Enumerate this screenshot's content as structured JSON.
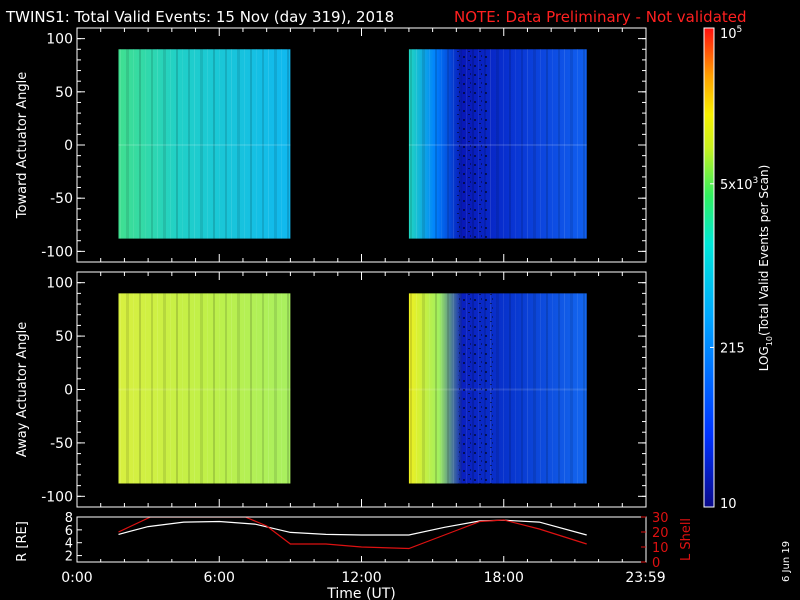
{
  "header": {
    "title": "TWINS1: Total Valid Events: 15 Nov (day 319), 2018",
    "note": "NOTE: Data Preliminary - Not validated"
  },
  "side_date": "6 Jun 19",
  "colors": {
    "background": "#000000",
    "axis": "#ffffff",
    "note": "#ff2020",
    "l_shell": "#dd1111",
    "r_earth": "#ffffff"
  },
  "chart_data": [
    {
      "type": "heatmap",
      "name": "toward",
      "ylabel": "Toward Actuator Angle",
      "ylim": [
        -110,
        110
      ],
      "yticks": [
        100,
        50,
        0,
        -50,
        -100
      ],
      "ytick_labels": [
        "100",
        "50",
        "0",
        "-50",
        "-100"
      ],
      "xlim_hours": [
        0,
        24
      ],
      "data_blocks": [
        {
          "start_h": 1.75,
          "end_h": 9.0,
          "angle_range": [
            -88,
            90
          ],
          "level": "medium",
          "description": "green-cyan fading to cyan"
        },
        {
          "start_h": 14.0,
          "end_h": 21.5,
          "angle_range": [
            -88,
            90
          ],
          "level": "low",
          "description": "cyan fading to deep blue"
        }
      ]
    },
    {
      "type": "heatmap",
      "name": "away",
      "ylabel": "Away Actuator Angle",
      "ylim": [
        -110,
        110
      ],
      "yticks": [
        100,
        50,
        0,
        -50,
        -100
      ],
      "ytick_labels": [
        "100",
        "50",
        "0",
        "-50",
        "-100"
      ],
      "xlim_hours": [
        0,
        24
      ],
      "data_blocks": [
        {
          "start_h": 1.75,
          "end_h": 9.0,
          "angle_range": [
            -88,
            90
          ],
          "level": "high",
          "description": "yellow to yellow-green"
        },
        {
          "start_h": 14.0,
          "end_h": 21.5,
          "angle_range": [
            -88,
            90
          ],
          "level": "mixed",
          "description": "yellow at start, blue after ~16:00"
        }
      ]
    },
    {
      "type": "line",
      "name": "orbit",
      "xlabel": "Time (UT)",
      "xticks": [
        "0:00",
        "6:00",
        "12:00",
        "18:00",
        "23:59"
      ],
      "xtick_hours": [
        0,
        6,
        12,
        18,
        23.98
      ],
      "ylabel_left": "R [RE]",
      "ylabel_right": "L Shell",
      "ylim_left": [
        1,
        8
      ],
      "yticks_left": [
        2,
        4,
        6,
        8
      ],
      "ylim_right": [
        0,
        30
      ],
      "yticks_right": [
        0,
        10,
        20,
        30
      ],
      "series": [
        {
          "name": "R [RE]",
          "color": "#ffffff",
          "x_hours": [
            1.75,
            3,
            4.5,
            6,
            7.5,
            9,
            10.5,
            12,
            14,
            15.5,
            17,
            18,
            19.5,
            21.5
          ],
          "y": [
            5.3,
            6.5,
            7.2,
            7.3,
            6.9,
            5.6,
            5.3,
            5.2,
            5.2,
            6.4,
            7.4,
            7.5,
            7.2,
            5.2
          ]
        },
        {
          "name": "L Shell",
          "color": "#dd1111",
          "x_hours": [
            1.75,
            3.1,
            7.1,
            8.0,
            9.0,
            10.5,
            12.0,
            14.0,
            15.5,
            17.0,
            18.0,
            19.5,
            21.5
          ],
          "y": [
            20,
            30,
            30,
            24,
            12,
            12,
            10,
            9,
            18,
            27,
            28,
            22,
            12
          ]
        }
      ]
    }
  ],
  "colorbar": {
    "label_prefix": "LOG",
    "label_sub": "10",
    "label_suffix": "(Total Valid Events per Scan)",
    "ticks": [
      {
        "base": "10",
        "exp": "5",
        "value": 100000
      },
      {
        "base": "5x10",
        "exp": "3",
        "value": 5000
      },
      {
        "base": "215",
        "exp": "",
        "value": 215
      },
      {
        "base": "10",
        "exp": "",
        "value": 10
      }
    ],
    "range": [
      10,
      100000
    ],
    "log_scale": true
  }
}
